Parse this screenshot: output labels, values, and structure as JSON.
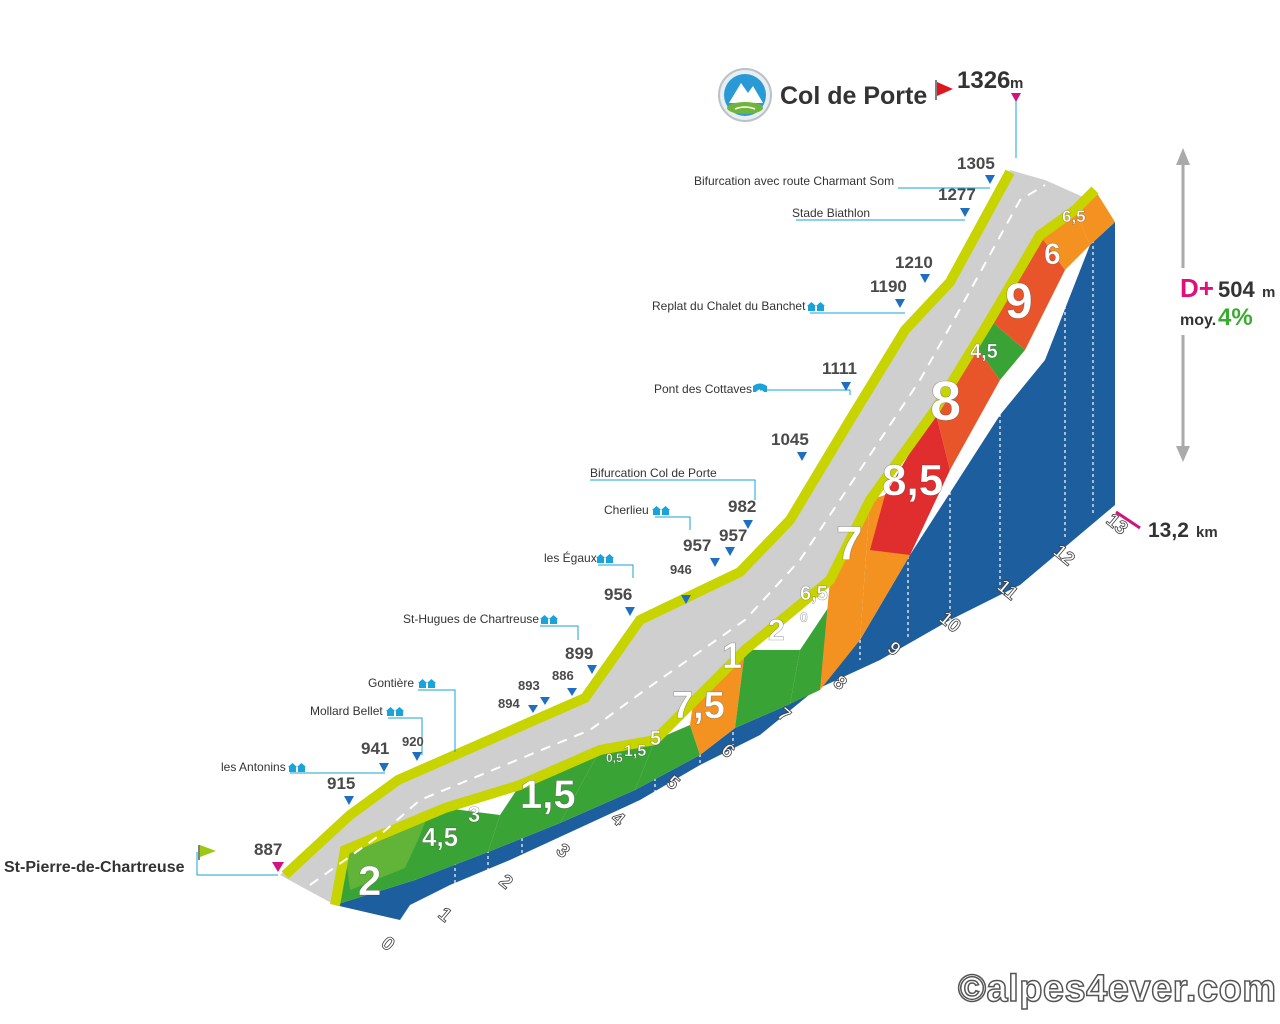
{
  "colors": {
    "blue_wall": "#1d5e9e",
    "road_top": "#cfcfcf",
    "road_edge": "#c8d400",
    "grad_3": "#7cbf3a",
    "grad_5": "#3aa335",
    "grad_7": "#f39220",
    "grad_8": "#e8552b",
    "grad_9": "#e02d2d",
    "marker_pink": "#d1157e",
    "marker_blue": "#1f6fc0",
    "flag_red": "#e0161e",
    "flag_green": "#9cc813"
  },
  "summit": {
    "name": "Col de Porte",
    "altitude": "1326",
    "unit": "m",
    "icon": "mountain-pass-icon"
  },
  "start": {
    "name": "St-Pierre-de-Chartreuse",
    "altitude": "887"
  },
  "stats": {
    "dplus_label": "D+",
    "dplus_value": "504",
    "dplus_unit": "m",
    "avg_label": "moy.",
    "avg_value": "4%"
  },
  "distance": {
    "value": "13,2",
    "unit": "km"
  },
  "landmarks": [
    {
      "name": "les Antonins",
      "icon": "village-icon"
    },
    {
      "name": "Mollard Bellet",
      "icon": "village-icon"
    },
    {
      "name": "Gontière",
      "icon": "village-icon"
    },
    {
      "name": "St-Hugues de Chartreuse",
      "icon": "village-icon"
    },
    {
      "name": "les Égaux",
      "icon": "village-icon"
    },
    {
      "name": "Cherlieu",
      "icon": "village-icon"
    },
    {
      "name": "Bifurcation Col de Porte",
      "icon": ""
    },
    {
      "name": "Pont des Cottaves",
      "icon": "bridge-icon"
    },
    {
      "name": "Replat du Chalet du Banchet",
      "icon": "village-icon"
    },
    {
      "name": "Stade Biathlon",
      "icon": ""
    },
    {
      "name": "Bifurcation avec route Charmant Som",
      "icon": ""
    }
  ],
  "altitude_labels": {
    "a915": "915",
    "a941": "941",
    "a920": "920",
    "a894": "894",
    "a893": "893",
    "a886": "886",
    "a899": "899",
    "a956": "956",
    "a946": "946",
    "a957a": "957",
    "a957b": "957",
    "a982": "982",
    "a1045": "1045",
    "a1111": "1111",
    "a1190": "1190",
    "a1210": "1210",
    "a1277": "1277",
    "a1305": "1305"
  },
  "chart_data": {
    "type": "area",
    "title": "Col de Porte",
    "xlabel": "km",
    "ylabel": "m",
    "x": [
      0,
      1,
      2,
      3,
      4,
      5,
      6,
      7,
      8,
      9,
      10,
      11,
      12,
      13.2
    ],
    "x_tick_labels": [
      "0",
      "1",
      "2",
      "3",
      "4",
      "5",
      "6",
      "7",
      "8",
      "9",
      "10",
      "11",
      "12",
      "13"
    ],
    "elevation_points": [
      {
        "km": 0,
        "alt": 887
      },
      {
        "km": 1,
        "alt": 915
      },
      {
        "km": 1.5,
        "alt": 941
      },
      {
        "km": 2.2,
        "alt": 920
      },
      {
        "km": 3.4,
        "alt": 894
      },
      {
        "km": 3.7,
        "alt": 893
      },
      {
        "km": 4.1,
        "alt": 886
      },
      {
        "km": 4.4,
        "alt": 899
      },
      {
        "km": 5.0,
        "alt": 956
      },
      {
        "km": 5.6,
        "alt": 946
      },
      {
        "km": 6.0,
        "alt": 957
      },
      {
        "km": 6.3,
        "alt": 957
      },
      {
        "km": 6.7,
        "alt": 982
      },
      {
        "km": 7.6,
        "alt": 1045
      },
      {
        "km": 8.6,
        "alt": 1111
      },
      {
        "km": 9.6,
        "alt": 1190
      },
      {
        "km": 10.0,
        "alt": 1210
      },
      {
        "km": 11.0,
        "alt": 1277
      },
      {
        "km": 12.4,
        "alt": 1305
      },
      {
        "km": 13.2,
        "alt": 1326
      }
    ],
    "gradient_segments": [
      {
        "from": 0,
        "to": 1,
        "pct": "2",
        "cat": "grad_5"
      },
      {
        "from": 1,
        "to": 1.5,
        "pct": "4,5",
        "cat": "grad_5"
      },
      {
        "from": 1.5,
        "to": 2.2,
        "pct": "3",
        "cat": "grad_5"
      },
      {
        "from": 2.2,
        "to": 3.4,
        "pct": "1,5",
        "cat": "grad_5"
      },
      {
        "from": 3.4,
        "to": 3.7,
        "pct": "0,5",
        "cat": "grad_5"
      },
      {
        "from": 3.7,
        "to": 4.1,
        "pct": "1,5",
        "cat": "grad_5"
      },
      {
        "from": 4.1,
        "to": 4.4,
        "pct": "5",
        "cat": "grad_5"
      },
      {
        "from": 4.4,
        "to": 5.0,
        "pct": "7,5",
        "cat": "grad_7"
      },
      {
        "from": 5.0,
        "to": 6.0,
        "pct": "1",
        "cat": "grad_5"
      },
      {
        "from": 6.0,
        "to": 6.3,
        "pct": "2",
        "cat": "grad_5"
      },
      {
        "from": 6.3,
        "to": 6.7,
        "pct": "0",
        "cat": "grad_5"
      },
      {
        "from": 6.7,
        "to": 7.0,
        "pct": "6,5",
        "cat": "grad_7"
      },
      {
        "from": 7.0,
        "to": 8.0,
        "pct": "7",
        "cat": "grad_7"
      },
      {
        "from": 8.0,
        "to": 9.0,
        "pct": "8,5",
        "cat": "grad_9"
      },
      {
        "from": 9.0,
        "to": 10.0,
        "pct": "8",
        "cat": "grad_8"
      },
      {
        "from": 10.0,
        "to": 10.6,
        "pct": "4,5",
        "cat": "grad_5"
      },
      {
        "from": 10.6,
        "to": 12.0,
        "pct": "9",
        "cat": "grad_8"
      },
      {
        "from": 12.0,
        "to": 12.6,
        "pct": "6",
        "cat": "grad_7"
      },
      {
        "from": 12.6,
        "to": 13.2,
        "pct": "6,5",
        "cat": "grad_7"
      }
    ],
    "ylim": [
      887,
      1326
    ],
    "grid": false
  }
}
